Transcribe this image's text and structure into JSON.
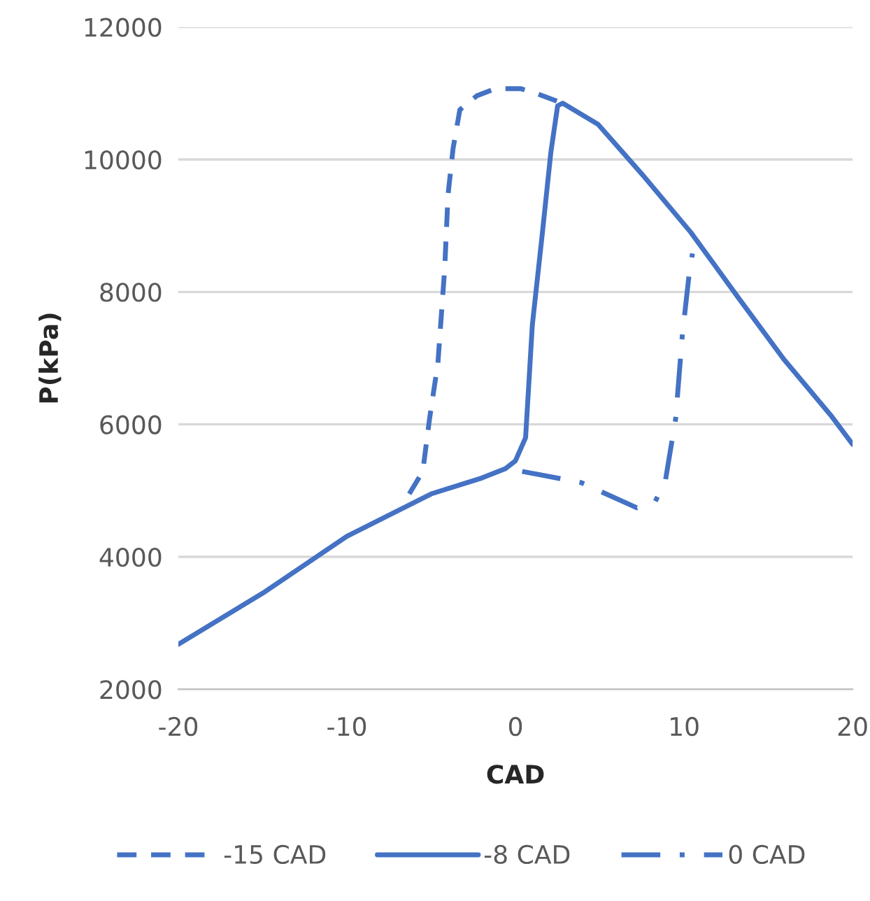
{
  "chart_data": {
    "type": "line",
    "xlabel": "CAD",
    "ylabel": "P(kPa)",
    "xlim": [
      -20,
      20
    ],
    "xticks": [
      -20,
      -10,
      0,
      10,
      20
    ],
    "ylim": [
      2000,
      12000
    ],
    "yticks": [
      2000,
      4000,
      6000,
      8000,
      10000,
      12000
    ],
    "grid": "y",
    "legend": "bottom",
    "marker": "none",
    "series": [
      {
        "name": "-15 CAD",
        "color": "#4472c4",
        "line_style": "dashed",
        "x": [
          -6.3,
          -5.5,
          -5.1,
          -4.6,
          -4.2,
          -4.0,
          -3.7,
          -3.3,
          -2.3,
          -1.2,
          0.3,
          1.2,
          2.8
        ],
        "values": [
          4950,
          5290,
          6080,
          6930,
          8350,
          9470,
          10170,
          10750,
          10960,
          11070,
          11070,
          11000,
          10850
        ]
      },
      {
        "name": "-8 CAD",
        "color": "#4472c4",
        "line_style": "solid",
        "x": [
          -20,
          -15,
          -10,
          -5,
          -2,
          -0.6,
          0.0,
          0.6,
          1.0,
          1.6,
          2.1,
          2.5,
          2.8,
          4.9,
          7.6,
          10.4,
          13.2,
          15.9,
          18.7,
          20
        ],
        "values": [
          2680,
          3450,
          4310,
          4950,
          5190,
          5330,
          5450,
          5800,
          7500,
          8900,
          10110,
          10810,
          10850,
          10530,
          9750,
          8900,
          7920,
          6990,
          6140,
          5700
        ]
      },
      {
        "name": "0 CAD",
        "color": "#4472c4",
        "line_style": "dashdot",
        "x": [
          0.4,
          3.9,
          7.2,
          8.3,
          8.9,
          9.5,
          9.9,
          10.3,
          10.5
        ],
        "values": [
          5290,
          5120,
          4740,
          4840,
          5160,
          6080,
          7350,
          8260,
          8580
        ]
      }
    ]
  }
}
